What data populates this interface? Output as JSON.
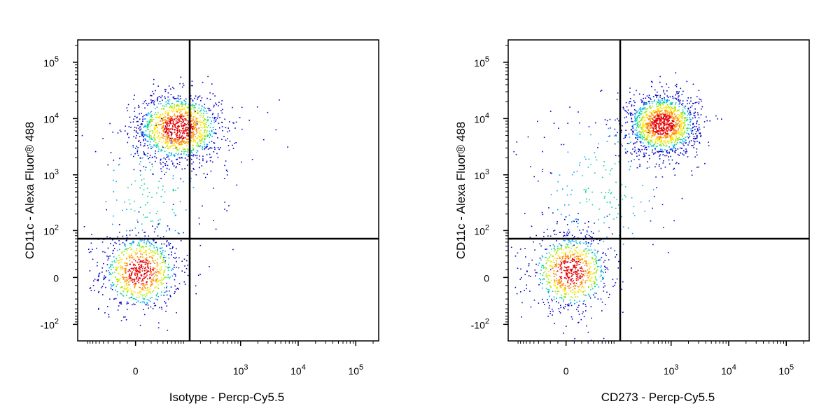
{
  "chart_data": [
    {
      "type": "scatter",
      "subtype": "flow-cytometry-density-dot-plot",
      "xlabel": "Isotype - Percp-Cy5.5",
      "ylabel": "CD11c - Alexa Fluor® 488",
      "x_scale": "biexponential",
      "y_scale": "biexponential",
      "x_ticks": [
        {
          "label": "0",
          "value": 0
        },
        {
          "label": "10^3",
          "value": 1000
        },
        {
          "label": "10^4",
          "value": 10000
        },
        {
          "label": "10^5",
          "value": 100000
        }
      ],
      "y_ticks": [
        {
          "label": "-10^2",
          "value": -100
        },
        {
          "label": "0",
          "value": 0
        },
        {
          "label": "10^2",
          "value": 100
        },
        {
          "label": "10^3",
          "value": 1000
        },
        {
          "label": "10^4",
          "value": 10000
        },
        {
          "label": "10^5",
          "value": 100000
        }
      ],
      "xlim": [
        -150,
        250000
      ],
      "ylim": [
        -200,
        250000
      ],
      "quadrant_gate": {
        "x": 320,
        "y": 180
      },
      "populations": [
        {
          "x_center": 5,
          "y_center": 8,
          "spread_x": 0.5,
          "spread_y": 0.5,
          "density": "high",
          "count": 900
        },
        {
          "x_center": 80,
          "y_center": 7000,
          "spread_x": 0.55,
          "spread_y": 0.45,
          "density": "high",
          "count": 1400
        },
        {
          "x_center": 20,
          "y_center": 400,
          "spread_x": 0.8,
          "spread_y": 1.0,
          "density": "low",
          "count": 150
        },
        {
          "x_center": 500,
          "y_center": 2000,
          "spread_x": 0.7,
          "spread_y": 0.8,
          "density": "sparse",
          "count": 30
        }
      ],
      "color_scale": [
        "#0000c8",
        "#00a0ff",
        "#00d2a0",
        "#a0e600",
        "#ffe600",
        "#ff8c00",
        "#e60000"
      ]
    },
    {
      "type": "scatter",
      "subtype": "flow-cytometry-density-dot-plot",
      "xlabel": "CD273 - Percp-Cy5.5",
      "ylabel": "CD11c - Alexa Fluor® 488",
      "x_scale": "biexponential",
      "y_scale": "biexponential",
      "x_ticks": [
        {
          "label": "0",
          "value": 0
        },
        {
          "label": "10^3",
          "value": 1000
        },
        {
          "label": "10^4",
          "value": 10000
        },
        {
          "label": "10^5",
          "value": 100000
        }
      ],
      "y_ticks": [
        {
          "label": "-10^2",
          "value": -100
        },
        {
          "label": "0",
          "value": 0
        },
        {
          "label": "10^2",
          "value": 100
        },
        {
          "label": "10^3",
          "value": 1000
        },
        {
          "label": "10^4",
          "value": 10000
        },
        {
          "label": "10^5",
          "value": 100000
        }
      ],
      "xlim": [
        -150,
        250000
      ],
      "ylim": [
        -200,
        250000
      ],
      "quadrant_gate": {
        "x": 320,
        "y": 180
      },
      "populations": [
        {
          "x_center": 5,
          "y_center": 8,
          "spread_x": 0.5,
          "spread_y": 0.5,
          "density": "high",
          "count": 900
        },
        {
          "x_center": 700,
          "y_center": 8000,
          "spread_x": 0.45,
          "spread_y": 0.4,
          "density": "high",
          "count": 1500
        },
        {
          "x_center": 60,
          "y_center": 600,
          "spread_x": 0.9,
          "spread_y": 1.1,
          "density": "low",
          "count": 200
        }
      ],
      "color_scale": [
        "#0000c8",
        "#00a0ff",
        "#00d2a0",
        "#a0e600",
        "#ffe600",
        "#ff8c00",
        "#e60000"
      ]
    }
  ]
}
